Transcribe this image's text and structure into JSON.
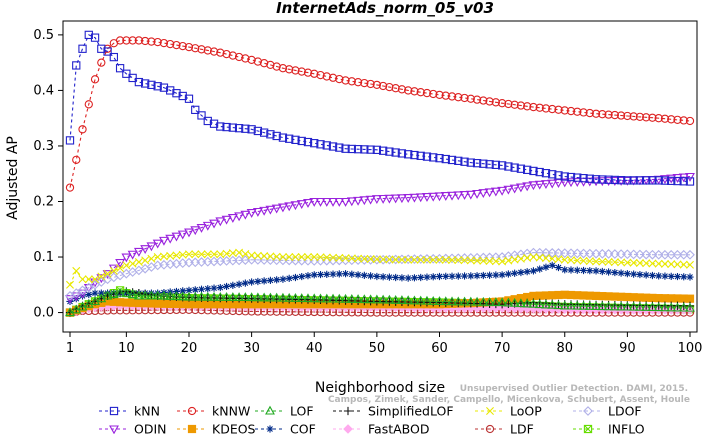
{
  "chart_data": {
    "type": "line",
    "title": "InternetAds_norm_05_v03",
    "xlabel": "Neighborhood size",
    "ylabel": "Adjusted AP",
    "xlim": [
      1,
      100
    ],
    "ylim": [
      -0.035,
      0.525
    ],
    "x_ticks": [
      1,
      10,
      20,
      30,
      40,
      50,
      60,
      70,
      80,
      90,
      100
    ],
    "y_ticks": [
      0.0,
      0.1,
      0.2,
      0.3,
      0.4,
      0.5
    ],
    "y_tick_labels": [
      "0.0",
      "0.1",
      "0.2",
      "0.3",
      "0.4",
      "0.5"
    ],
    "legend_position": "bottom",
    "watermark": [
      "Campos, Zimek, Sander, Campello, Micenkova, Schubert, Assent, Houle",
      "Unsupervised Outlier Detection. DAMI, 2015."
    ],
    "series": [
      {
        "name": "kNN",
        "color": "#2222cc",
        "marker": "square",
        "points": [
          [
            1,
            0.31
          ],
          [
            2,
            0.445
          ],
          [
            3,
            0.475
          ],
          [
            4,
            0.5
          ],
          [
            5,
            0.495
          ],
          [
            6,
            0.475
          ],
          [
            7,
            0.47
          ],
          [
            8,
            0.46
          ],
          [
            9,
            0.44
          ],
          [
            10,
            0.43
          ],
          [
            12,
            0.415
          ],
          [
            14,
            0.41
          ],
          [
            16,
            0.405
          ],
          [
            18,
            0.395
          ],
          [
            20,
            0.385
          ],
          [
            21,
            0.365
          ],
          [
            23,
            0.345
          ],
          [
            25,
            0.335
          ],
          [
            30,
            0.33
          ],
          [
            35,
            0.315
          ],
          [
            40,
            0.305
          ],
          [
            45,
            0.295
          ],
          [
            50,
            0.293
          ],
          [
            55,
            0.285
          ],
          [
            60,
            0.278
          ],
          [
            65,
            0.27
          ],
          [
            70,
            0.265
          ],
          [
            75,
            0.255
          ],
          [
            80,
            0.245
          ],
          [
            85,
            0.24
          ],
          [
            90,
            0.238
          ],
          [
            95,
            0.238
          ],
          [
            100,
            0.236
          ]
        ]
      },
      {
        "name": "kNNW",
        "color": "#dd2222",
        "marker": "circle",
        "points": [
          [
            1,
            0.225
          ],
          [
            2,
            0.275
          ],
          [
            3,
            0.33
          ],
          [
            4,
            0.375
          ],
          [
            5,
            0.42
          ],
          [
            6,
            0.45
          ],
          [
            7,
            0.475
          ],
          [
            8,
            0.485
          ],
          [
            9,
            0.49
          ],
          [
            10,
            0.49
          ],
          [
            12,
            0.49
          ],
          [
            15,
            0.487
          ],
          [
            20,
            0.478
          ],
          [
            25,
            0.468
          ],
          [
            30,
            0.455
          ],
          [
            35,
            0.44
          ],
          [
            40,
            0.43
          ],
          [
            45,
            0.418
          ],
          [
            50,
            0.41
          ],
          [
            55,
            0.4
          ],
          [
            60,
            0.392
          ],
          [
            65,
            0.385
          ],
          [
            70,
            0.377
          ],
          [
            75,
            0.37
          ],
          [
            80,
            0.364
          ],
          [
            85,
            0.358
          ],
          [
            90,
            0.354
          ],
          [
            95,
            0.35
          ],
          [
            100,
            0.345
          ]
        ]
      },
      {
        "name": "LOF",
        "color": "#22aa22",
        "marker": "triangle-up",
        "points": [
          [
            1,
            0.0
          ],
          [
            3,
            0.01
          ],
          [
            5,
            0.02
          ],
          [
            7,
            0.03
          ],
          [
            9,
            0.035
          ],
          [
            10,
            0.035
          ],
          [
            12,
            0.03
          ],
          [
            15,
            0.03
          ],
          [
            20,
            0.028
          ],
          [
            30,
            0.027
          ],
          [
            40,
            0.025
          ],
          [
            50,
            0.023
          ],
          [
            60,
            0.02
          ],
          [
            70,
            0.018
          ],
          [
            80,
            0.012
          ],
          [
            90,
            0.01
          ],
          [
            100,
            0.008
          ]
        ]
      },
      {
        "name": "SimplifiedLOF",
        "color": "#111111",
        "marker": "plus",
        "points": [
          [
            1,
            0.0
          ],
          [
            3,
            0.012
          ],
          [
            5,
            0.02
          ],
          [
            7,
            0.03
          ],
          [
            9,
            0.035
          ],
          [
            10,
            0.038
          ],
          [
            12,
            0.035
          ],
          [
            15,
            0.03
          ],
          [
            20,
            0.027
          ],
          [
            30,
            0.025
          ],
          [
            40,
            0.023
          ],
          [
            50,
            0.02
          ],
          [
            60,
            0.018
          ],
          [
            70,
            0.015
          ],
          [
            75,
            0.018
          ],
          [
            80,
            0.015
          ],
          [
            90,
            0.013
          ],
          [
            100,
            0.012
          ]
        ]
      },
      {
        "name": "LoOP",
        "color": "#e8e800",
        "marker": "x",
        "points": [
          [
            1,
            0.05
          ],
          [
            2,
            0.075
          ],
          [
            3,
            0.06
          ],
          [
            5,
            0.06
          ],
          [
            7,
            0.07
          ],
          [
            10,
            0.085
          ],
          [
            15,
            0.1
          ],
          [
            20,
            0.105
          ],
          [
            25,
            0.105
          ],
          [
            28,
            0.108
          ],
          [
            30,
            0.103
          ],
          [
            35,
            0.1
          ],
          [
            40,
            0.1
          ],
          [
            45,
            0.098
          ],
          [
            50,
            0.096
          ],
          [
            55,
            0.095
          ],
          [
            60,
            0.095
          ],
          [
            65,
            0.094
          ],
          [
            70,
            0.092
          ],
          [
            75,
            0.1
          ],
          [
            80,
            0.095
          ],
          [
            85,
            0.092
          ],
          [
            90,
            0.09
          ],
          [
            95,
            0.088
          ],
          [
            100,
            0.086
          ]
        ]
      },
      {
        "name": "LDOF",
        "color": "#b0b0e8",
        "marker": "diamond",
        "points": [
          [
            1,
            0.03
          ],
          [
            3,
            0.04
          ],
          [
            5,
            0.05
          ],
          [
            7,
            0.06
          ],
          [
            10,
            0.07
          ],
          [
            15,
            0.085
          ],
          [
            20,
            0.09
          ],
          [
            30,
            0.095
          ],
          [
            40,
            0.093
          ],
          [
            50,
            0.095
          ],
          [
            60,
            0.097
          ],
          [
            70,
            0.1
          ],
          [
            75,
            0.108
          ],
          [
            80,
            0.107
          ],
          [
            85,
            0.106
          ],
          [
            90,
            0.105
          ],
          [
            95,
            0.104
          ],
          [
            100,
            0.104
          ]
        ]
      },
      {
        "name": "ODIN",
        "color": "#9922dd",
        "marker": "triangle-down",
        "points": [
          [
            1,
            0.025
          ],
          [
            3,
            0.035
          ],
          [
            5,
            0.055
          ],
          [
            7,
            0.07
          ],
          [
            10,
            0.1
          ],
          [
            13,
            0.115
          ],
          [
            16,
            0.13
          ],
          [
            20,
            0.145
          ],
          [
            25,
            0.165
          ],
          [
            30,
            0.18
          ],
          [
            35,
            0.19
          ],
          [
            40,
            0.2
          ],
          [
            45,
            0.2
          ],
          [
            50,
            0.205
          ],
          [
            55,
            0.207
          ],
          [
            60,
            0.21
          ],
          [
            65,
            0.213
          ],
          [
            70,
            0.22
          ],
          [
            75,
            0.23
          ],
          [
            80,
            0.235
          ],
          [
            85,
            0.237
          ],
          [
            90,
            0.238
          ],
          [
            95,
            0.24
          ],
          [
            100,
            0.245
          ]
        ]
      },
      {
        "name": "KDEOS",
        "color": "#ee9900",
        "marker": "square-filled",
        "points": [
          [
            1,
            0.0
          ],
          [
            3,
            0.008
          ],
          [
            5,
            0.015
          ],
          [
            7,
            0.02
          ],
          [
            10,
            0.018
          ],
          [
            15,
            0.016
          ],
          [
            20,
            0.015
          ],
          [
            30,
            0.015
          ],
          [
            40,
            0.015
          ],
          [
            50,
            0.015
          ],
          [
            60,
            0.015
          ],
          [
            65,
            0.017
          ],
          [
            70,
            0.02
          ],
          [
            75,
            0.03
          ],
          [
            80,
            0.032
          ],
          [
            85,
            0.03
          ],
          [
            90,
            0.028
          ],
          [
            95,
            0.026
          ],
          [
            100,
            0.025
          ]
        ]
      },
      {
        "name": "COF",
        "color": "#002a88",
        "marker": "star",
        "points": [
          [
            1,
            0.02
          ],
          [
            3,
            0.03
          ],
          [
            5,
            0.035
          ],
          [
            8,
            0.035
          ],
          [
            10,
            0.035
          ],
          [
            15,
            0.035
          ],
          [
            20,
            0.04
          ],
          [
            25,
            0.045
          ],
          [
            30,
            0.055
          ],
          [
            35,
            0.06
          ],
          [
            40,
            0.068
          ],
          [
            45,
            0.07
          ],
          [
            50,
            0.065
          ],
          [
            55,
            0.062
          ],
          [
            60,
            0.065
          ],
          [
            65,
            0.066
          ],
          [
            70,
            0.068
          ],
          [
            75,
            0.075
          ],
          [
            78,
            0.085
          ],
          [
            80,
            0.077
          ],
          [
            85,
            0.075
          ],
          [
            90,
            0.07
          ],
          [
            95,
            0.066
          ],
          [
            100,
            0.064
          ]
        ]
      },
      {
        "name": "FastABOD",
        "color": "#ffaaee",
        "marker": "diamond-filled",
        "points": [
          [
            1,
            0.0
          ],
          [
            3,
            0.005
          ],
          [
            5,
            0.01
          ],
          [
            8,
            0.012
          ],
          [
            10,
            0.013
          ],
          [
            20,
            0.012
          ],
          [
            30,
            0.011
          ],
          [
            40,
            0.01
          ],
          [
            50,
            0.01
          ],
          [
            60,
            0.008
          ],
          [
            70,
            0.008
          ],
          [
            80,
            0.006
          ],
          [
            90,
            0.005
          ],
          [
            100,
            0.005
          ]
        ]
      },
      {
        "name": "LDF",
        "color": "#bb3333",
        "marker": "circle-dot",
        "points": [
          [
            1,
            0.0
          ],
          [
            3,
            0.003
          ],
          [
            5,
            0.003
          ],
          [
            8,
            0.004
          ],
          [
            10,
            0.004
          ],
          [
            20,
            0.005
          ],
          [
            30,
            0.002
          ],
          [
            40,
            0.001
          ],
          [
            50,
            0.0
          ],
          [
            60,
            0.0
          ],
          [
            70,
            0.0
          ],
          [
            80,
            0.0
          ],
          [
            90,
            0.0
          ],
          [
            100,
            0.0
          ]
        ]
      },
      {
        "name": "INFLO",
        "color": "#66dd00",
        "marker": "square-x",
        "points": [
          [
            1,
            0.0
          ],
          [
            3,
            0.01
          ],
          [
            5,
            0.02
          ],
          [
            7,
            0.03
          ],
          [
            9,
            0.04
          ],
          [
            10,
            0.035
          ],
          [
            12,
            0.03
          ],
          [
            15,
            0.028
          ],
          [
            20,
            0.026
          ],
          [
            30,
            0.024
          ],
          [
            40,
            0.022
          ],
          [
            50,
            0.02
          ],
          [
            60,
            0.018
          ],
          [
            70,
            0.015
          ],
          [
            80,
            0.01
          ],
          [
            90,
            0.008
          ],
          [
            100,
            0.006
          ]
        ]
      }
    ]
  }
}
